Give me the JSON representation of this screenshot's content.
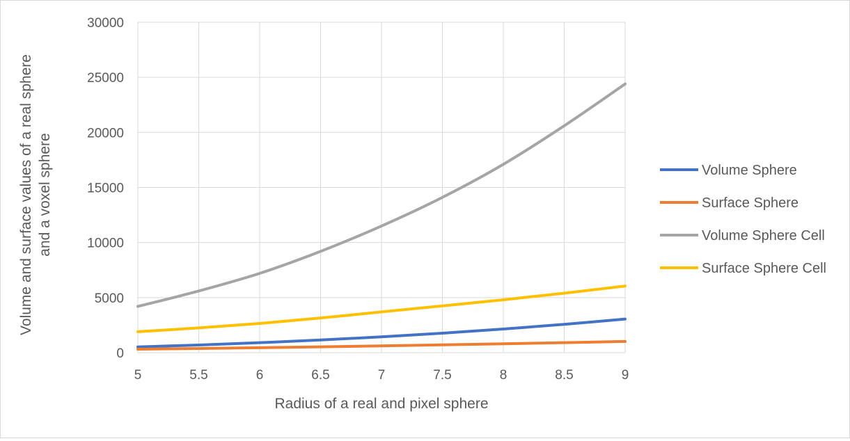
{
  "chart_data": {
    "type": "line",
    "title": "",
    "xlabel": "Radius of a real and pixel sphere",
    "ylabel_lines": [
      "Volume and surface values of a real sphere",
      "and a voxel sphere"
    ],
    "x": [
      5,
      5.5,
      6,
      6.5,
      7,
      7.5,
      8,
      8.5,
      9
    ],
    "x_tick_labels": [
      "5",
      "5.5",
      "6",
      "6.5",
      "7",
      "7.5",
      "8",
      "8.5",
      "9"
    ],
    "xlim": [
      5,
      9
    ],
    "ylim": [
      0,
      30000
    ],
    "y_ticks": [
      0,
      5000,
      10000,
      15000,
      20000,
      25000,
      30000
    ],
    "y_tick_labels": [
      "0",
      "5000",
      "10000",
      "15000",
      "20000",
      "25000",
      "30000"
    ],
    "grid": true,
    "legend_position": "right",
    "series": [
      {
        "name": "Volume Sphere",
        "color": "#4472c4",
        "values": [
          524,
          697,
          905,
          1150,
          1437,
          1767,
          2145,
          2572,
          3054
        ]
      },
      {
        "name": "Surface Sphere",
        "color": "#ed7d31",
        "values": [
          314,
          380,
          452,
          531,
          616,
          707,
          804,
          908,
          1018
        ]
      },
      {
        "name": "Volume Sphere Cell",
        "color": "#a5a5a5",
        "values": [
          4200,
          5600,
          7200,
          9200,
          11500,
          14100,
          17100,
          20600,
          24400
        ]
      },
      {
        "name": "Surface Sphere Cell",
        "color": "#ffc000",
        "values": [
          1900,
          2250,
          2650,
          3150,
          3700,
          4250,
          4800,
          5400,
          6050
        ]
      }
    ]
  }
}
